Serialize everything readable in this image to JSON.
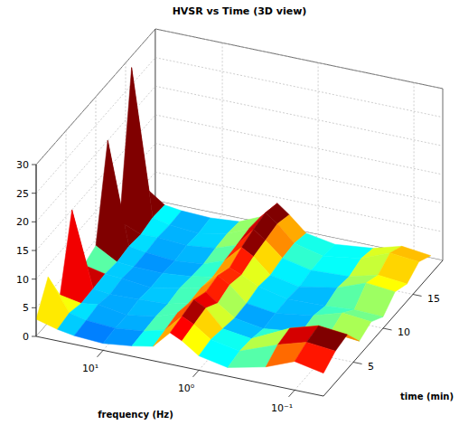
{
  "chart_data": {
    "type": "surface3d",
    "title": "HVSR vs Time (3D view)",
    "x_label": "frequency (Hz)",
    "y_label": "time (min)",
    "x": [
      50,
      30,
      20,
      10,
      5,
      3,
      2,
      1.5,
      1,
      0.5,
      0.2,
      0.1,
      0.05
    ],
    "y": [
      0,
      2,
      4,
      6,
      8,
      10,
      12,
      14,
      16,
      18
    ],
    "z": [
      [
        3,
        2,
        1.5,
        1.2,
        1.8,
        2.5,
        5.5,
        4.5,
        2.5,
        1.5,
        3,
        5,
        4
      ],
      [
        8,
        2.5,
        1.8,
        1.5,
        2,
        3,
        6,
        5,
        3,
        2,
        4.5,
        6,
        5.5
      ],
      [
        2.5,
        1.8,
        2.2,
        1.4,
        2.2,
        3.5,
        6.5,
        5.5,
        2.5,
        1.8,
        5,
        6.5,
        6
      ],
      [
        15,
        2,
        1.6,
        1.8,
        2,
        3,
        5.5,
        4,
        2,
        1.2,
        2,
        3,
        2.5
      ],
      [
        3,
        2.2,
        2,
        1.5,
        2.4,
        3.2,
        6,
        4.8,
        2.2,
        1.5,
        2.5,
        4,
        3.5
      ],
      [
        4,
        1.9,
        1.7,
        1.6,
        2.1,
        2.8,
        5,
        4.2,
        2.8,
        1.6,
        1.8,
        2.2,
        2
      ],
      [
        20,
        2.3,
        1.8,
        1.4,
        1.9,
        3.3,
        6.2,
        5,
        2.4,
        1.4,
        2.6,
        4.5,
        4
      ],
      [
        3.5,
        2,
        2.1,
        1.7,
        2.3,
        3.6,
        7,
        5.5,
        3,
        1.9,
        2.2,
        3.5,
        3
      ],
      [
        28,
        2.6,
        1.9,
        1.5,
        2.5,
        4,
        7.5,
        6,
        3.2,
        2,
        3,
        5,
        4.5
      ],
      [
        5,
        2.4,
        2,
        1.8,
        2.2,
        3.8,
        6.8,
        5.2,
        2.6,
        1.7,
        2.4,
        3.8,
        3.2
      ]
    ],
    "xlim": [
      50,
      0.05
    ],
    "xticks": [
      {
        "value": 10,
        "label": "10¹"
      },
      {
        "value": 1,
        "label": "10⁰"
      },
      {
        "value": 0.1,
        "label": "10⁻¹"
      }
    ],
    "ylim": [
      0,
      20
    ],
    "yticks": [
      5,
      10,
      15
    ],
    "zlim": [
      0,
      30
    ],
    "zticks": [
      0,
      5,
      10,
      15,
      20,
      25,
      30
    ],
    "clim": [
      0,
      6
    ],
    "log": "x",
    "grid": true
  }
}
